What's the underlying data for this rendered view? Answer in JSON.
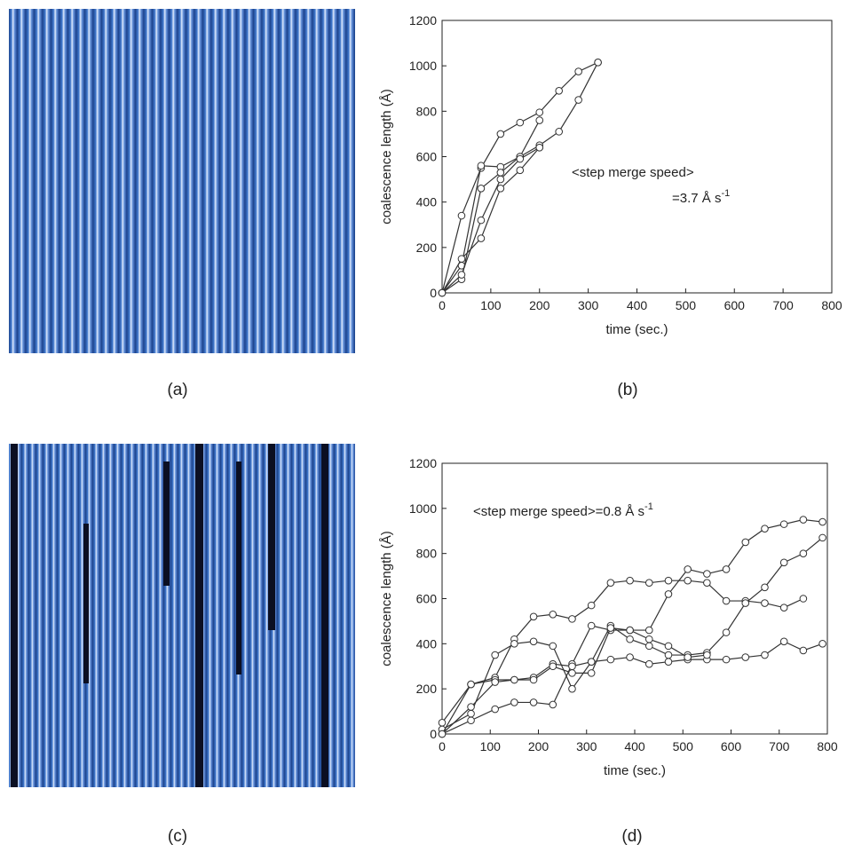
{
  "panels": [
    "(a)",
    "(b)",
    "(c)",
    "(d)"
  ],
  "chart_data": [
    {
      "type": "line",
      "xlabel": "time (sec.)",
      "ylabel": "coalescence length (Å)",
      "annotation": {
        "lines": [
          "<step merge speed>",
          "=3.7 Å s"
        ],
        "superscript": "-1"
      },
      "xlim": [
        0,
        800
      ],
      "ylim": [
        0,
        1200
      ],
      "xticks": [
        0,
        100,
        200,
        300,
        400,
        500,
        600,
        700,
        800
      ],
      "yticks": [
        0,
        200,
        400,
        600,
        800,
        1000,
        1200
      ],
      "x": [
        0,
        40,
        80,
        120,
        160,
        200,
        240,
        280,
        320
      ],
      "series": [
        {
          "color": "#333333",
          "values": [
            0,
            340,
            550,
            700,
            750,
            795,
            890,
            975,
            1015
          ]
        },
        {
          "color": "#333333",
          "values": [
            0,
            120,
            560,
            555,
            600,
            650,
            710,
            850,
            1015
          ]
        },
        {
          "color": "#333333",
          "values": [
            0,
            60,
            460,
            530,
            600,
            760,
            null,
            null,
            null
          ]
        },
        {
          "color": "#333333",
          "values": [
            0,
            80,
            320,
            500,
            590,
            640,
            null,
            null,
            null
          ]
        },
        {
          "color": "#333333",
          "values": [
            0,
            150,
            240,
            460,
            540,
            640,
            null,
            null,
            null
          ]
        }
      ]
    },
    {
      "type": "line",
      "xlabel": "time (sec.)",
      "ylabel": "coalescence length (Å)",
      "annotation": {
        "lines": [
          "<step merge speed>=0.8 Å s"
        ],
        "superscript": "-1"
      },
      "xlim": [
        0,
        800
      ],
      "ylim": [
        0,
        1200
      ],
      "xticks": [
        0,
        100,
        200,
        300,
        400,
        500,
        600,
        700,
        800
      ],
      "yticks": [
        0,
        200,
        400,
        600,
        800,
        1000,
        1200
      ],
      "x": [
        0,
        60,
        110,
        150,
        190,
        230,
        270,
        310,
        350,
        390,
        430,
        470,
        510,
        550,
        590,
        630,
        670,
        710,
        750,
        790
      ],
      "series": [
        {
          "color": "#333333",
          "values": [
            50,
            220,
            250,
            420,
            520,
            530,
            510,
            570,
            670,
            680,
            670,
            680,
            680,
            670,
            590,
            590,
            580,
            560,
            600,
            null
          ]
        },
        {
          "color": "#333333",
          "values": [
            0,
            60,
            110,
            140,
            140,
            130,
            310,
            480,
            460,
            460,
            460,
            620,
            730,
            710,
            730,
            850,
            910,
            930,
            950,
            940
          ]
        },
        {
          "color": "#333333",
          "values": [
            20,
            90,
            350,
            400,
            410,
            390,
            200,
            320,
            480,
            420,
            390,
            350,
            350,
            360,
            450,
            580,
            650,
            760,
            800,
            870
          ]
        },
        {
          "color": "#333333",
          "values": [
            0,
            220,
            240,
            240,
            250,
            310,
            300,
            320,
            330,
            340,
            310,
            320,
            330,
            330,
            330,
            340,
            350,
            410,
            370,
            400
          ]
        },
        {
          "color": "#333333",
          "values": [
            0,
            120,
            230,
            240,
            240,
            300,
            270,
            270,
            470,
            460,
            420,
            390,
            340,
            350,
            null,
            null,
            null,
            null,
            null,
            null
          ]
        }
      ]
    }
  ]
}
